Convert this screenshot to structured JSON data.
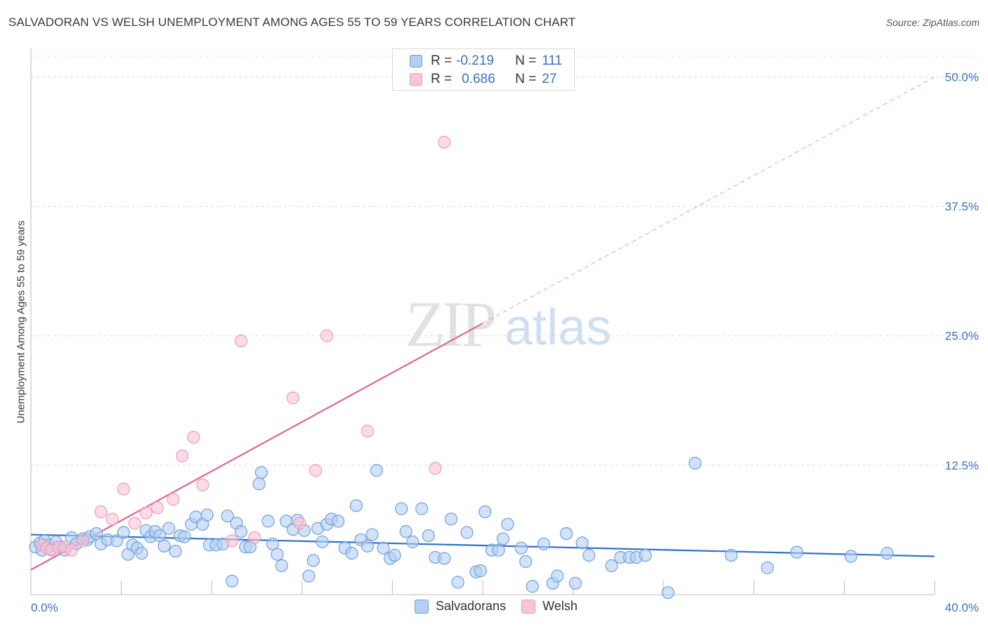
{
  "title": "SALVADORAN VS WELSH UNEMPLOYMENT AMONG AGES 55 TO 59 YEARS CORRELATION CHART",
  "source": "Source: ZipAtlas.com",
  "colors": {
    "blue": "#6fa0e0",
    "blue_fill": "#b4cff2",
    "blue_line": "#2f72c8",
    "pink": "#f09ab8",
    "pink_fill": "#f7c5d6",
    "pink_line": "#e06690",
    "axis_text": "#3a72c0"
  },
  "legend_top": {
    "rows": [
      {
        "r_label": "R =",
        "r_value": "-0.219",
        "n_label": "N =",
        "n_value": "111"
      },
      {
        "r_label": "R =",
        "r_value": "0.686",
        "n_label": "N =",
        "n_value": "27"
      }
    ]
  },
  "legend_bottom": {
    "items": [
      "Salvadorans",
      "Welsh"
    ]
  },
  "watermark": {
    "zip": "ZIP",
    "atlas": "atlas"
  },
  "chart_data": {
    "type": "scatter",
    "xlabel": "",
    "ylabel": "Unemployment Among Ages 55 to 59 years",
    "xlim": [
      0,
      40
    ],
    "ylim": [
      0,
      52
    ],
    "x_tick_labels": [
      "0.0%",
      "40.0%"
    ],
    "y_ticks": [
      12.5,
      25.0,
      37.5,
      50.0
    ],
    "y_tick_labels": [
      "12.5%",
      "25.0%",
      "37.5%",
      "50.0%"
    ],
    "grid": true,
    "series": [
      {
        "name": "Salvadorans",
        "r": -0.219,
        "n": 111,
        "trend": {
          "x": [
            0,
            40
          ],
          "y": [
            5.8,
            3.7
          ]
        },
        "points": [
          [
            0.2,
            4.6
          ],
          [
            0.4,
            5.0
          ],
          [
            0.5,
            4.3
          ],
          [
            0.6,
            5.2
          ],
          [
            0.8,
            4.8
          ],
          [
            0.9,
            4.4
          ],
          [
            1.1,
            5.1
          ],
          [
            1.3,
            4.6
          ],
          [
            1.5,
            4.3
          ],
          [
            1.8,
            5.5
          ],
          [
            2.0,
            4.9
          ],
          [
            2.3,
            5.4
          ],
          [
            2.5,
            5.3
          ],
          [
            2.6,
            5.6
          ],
          [
            2.9,
            5.9
          ],
          [
            3.1,
            4.9
          ],
          [
            3.4,
            5.3
          ],
          [
            3.8,
            5.2
          ],
          [
            4.1,
            6.0
          ],
          [
            4.3,
            3.9
          ],
          [
            4.5,
            4.8
          ],
          [
            4.7,
            4.5
          ],
          [
            4.9,
            4.0
          ],
          [
            5.1,
            6.2
          ],
          [
            5.3,
            5.6
          ],
          [
            5.5,
            6.1
          ],
          [
            5.7,
            5.7
          ],
          [
            5.9,
            4.7
          ],
          [
            6.1,
            6.4
          ],
          [
            6.4,
            4.2
          ],
          [
            6.6,
            5.7
          ],
          [
            6.8,
            5.6
          ],
          [
            7.1,
            6.8
          ],
          [
            7.3,
            7.5
          ],
          [
            7.6,
            6.8
          ],
          [
            7.8,
            7.7
          ],
          [
            7.9,
            4.8
          ],
          [
            8.2,
            4.8
          ],
          [
            8.5,
            4.9
          ],
          [
            8.7,
            7.6
          ],
          [
            8.9,
            1.3
          ],
          [
            9.1,
            6.9
          ],
          [
            9.3,
            6.1
          ],
          [
            9.5,
            4.6
          ],
          [
            9.7,
            4.6
          ],
          [
            10.1,
            10.7
          ],
          [
            10.2,
            11.8
          ],
          [
            10.5,
            7.1
          ],
          [
            10.7,
            4.9
          ],
          [
            10.9,
            3.9
          ],
          [
            11.1,
            2.8
          ],
          [
            11.3,
            7.1
          ],
          [
            11.6,
            6.3
          ],
          [
            11.8,
            7.2
          ],
          [
            12.1,
            6.2
          ],
          [
            12.3,
            1.8
          ],
          [
            12.5,
            3.3
          ],
          [
            12.7,
            6.4
          ],
          [
            12.9,
            5.1
          ],
          [
            13.1,
            6.8
          ],
          [
            13.3,
            7.3
          ],
          [
            13.6,
            7.1
          ],
          [
            13.9,
            4.5
          ],
          [
            14.2,
            4.0
          ],
          [
            14.4,
            8.6
          ],
          [
            14.6,
            5.3
          ],
          [
            14.9,
            4.7
          ],
          [
            15.1,
            5.8
          ],
          [
            15.3,
            12.0
          ],
          [
            15.6,
            4.5
          ],
          [
            15.9,
            3.5
          ],
          [
            16.1,
            3.8
          ],
          [
            16.4,
            8.3
          ],
          [
            16.6,
            6.1
          ],
          [
            16.9,
            5.1
          ],
          [
            17.3,
            8.3
          ],
          [
            17.6,
            5.7
          ],
          [
            17.9,
            3.6
          ],
          [
            18.3,
            3.5
          ],
          [
            18.6,
            7.3
          ],
          [
            18.9,
            1.2
          ],
          [
            19.3,
            6.0
          ],
          [
            19.7,
            2.2
          ],
          [
            19.9,
            2.3
          ],
          [
            20.1,
            8.0
          ],
          [
            20.4,
            4.3
          ],
          [
            20.7,
            4.3
          ],
          [
            20.9,
            5.4
          ],
          [
            21.1,
            6.8
          ],
          [
            21.7,
            4.5
          ],
          [
            21.9,
            3.2
          ],
          [
            22.2,
            0.8
          ],
          [
            22.7,
            4.9
          ],
          [
            23.1,
            1.1
          ],
          [
            23.3,
            1.8
          ],
          [
            23.7,
            5.9
          ],
          [
            24.1,
            1.1
          ],
          [
            24.4,
            5.0
          ],
          [
            24.7,
            3.8
          ],
          [
            25.7,
            2.8
          ],
          [
            26.1,
            3.6
          ],
          [
            26.5,
            3.6
          ],
          [
            26.8,
            3.6
          ],
          [
            27.2,
            3.8
          ],
          [
            28.2,
            0.2
          ],
          [
            29.4,
            12.7
          ],
          [
            31.0,
            3.8
          ],
          [
            32.6,
            2.6
          ],
          [
            33.9,
            4.1
          ],
          [
            36.3,
            3.7
          ],
          [
            37.9,
            4.0
          ]
        ]
      },
      {
        "name": "Welsh",
        "r": 0.686,
        "n": 27,
        "trend": {
          "x": [
            0,
            20
          ],
          "y": [
            2.4,
            26.2
          ]
        },
        "trend_extension": {
          "x": [
            20,
            40
          ],
          "y": [
            26.2,
            50.0
          ]
        },
        "points": [
          [
            0.5,
            4.8
          ],
          [
            0.7,
            4.5
          ],
          [
            0.9,
            4.3
          ],
          [
            1.2,
            4.6
          ],
          [
            1.5,
            4.6
          ],
          [
            1.8,
            4.3
          ],
          [
            2.3,
            5.2
          ],
          [
            3.1,
            8.0
          ],
          [
            3.6,
            7.3
          ],
          [
            4.1,
            10.2
          ],
          [
            4.6,
            6.9
          ],
          [
            5.1,
            7.9
          ],
          [
            5.6,
            8.4
          ],
          [
            6.3,
            9.2
          ],
          [
            6.7,
            13.4
          ],
          [
            7.2,
            15.2
          ],
          [
            7.6,
            10.6
          ],
          [
            8.9,
            5.2
          ],
          [
            9.3,
            24.5
          ],
          [
            9.9,
            5.5
          ],
          [
            11.6,
            19.0
          ],
          [
            11.9,
            6.9
          ],
          [
            12.6,
            12.0
          ],
          [
            13.1,
            25.0
          ],
          [
            14.9,
            15.8
          ],
          [
            17.9,
            12.2
          ],
          [
            18.3,
            43.7
          ]
        ]
      }
    ]
  }
}
